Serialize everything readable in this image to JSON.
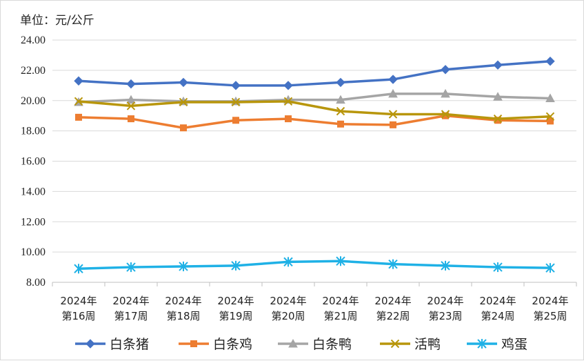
{
  "chart_data": {
    "type": "line",
    "unit_label": "单位：元/公斤",
    "categories": [
      [
        "2024年",
        "第16周"
      ],
      [
        "2024年",
        "第17周"
      ],
      [
        "2024年",
        "第18周"
      ],
      [
        "2024年",
        "第19周"
      ],
      [
        "2024年",
        "第20周"
      ],
      [
        "2024年",
        "第21周"
      ],
      [
        "2024年",
        "第22周"
      ],
      [
        "2024年",
        "第23周"
      ],
      [
        "2024年",
        "第24周"
      ],
      [
        "2024年",
        "第25周"
      ]
    ],
    "ylim": [
      8,
      24
    ],
    "yticks": [
      "8.00",
      "10.00",
      "12.00",
      "14.00",
      "16.00",
      "18.00",
      "20.00",
      "22.00",
      "24.00"
    ],
    "grid": true,
    "legend_position": "bottom",
    "series": [
      {
        "name": "白条猪",
        "color": "#4472C4",
        "marker": "diamond",
        "values": [
          21.3,
          21.1,
          21.2,
          21.0,
          21.0,
          21.2,
          21.4,
          22.05,
          22.35,
          22.6
        ]
      },
      {
        "name": "白条鸡",
        "color": "#ED7D31",
        "marker": "square",
        "values": [
          18.9,
          18.8,
          18.2,
          18.7,
          18.8,
          18.45,
          18.4,
          19.0,
          18.7,
          18.65
        ]
      },
      {
        "name": "白条鸭",
        "color": "#A5A5A5",
        "marker": "triangle",
        "values": [
          19.9,
          20.05,
          19.95,
          19.95,
          20.05,
          20.05,
          20.45,
          20.45,
          20.25,
          20.15
        ]
      },
      {
        "name": "活鸭",
        "color": "#B8960C",
        "marker": "x",
        "values": [
          19.95,
          19.65,
          19.9,
          19.9,
          19.95,
          19.3,
          19.1,
          19.1,
          18.8,
          18.95
        ]
      },
      {
        "name": "鸡蛋",
        "color": "#1FB1E6",
        "marker": "asterisk",
        "values": [
          8.9,
          9.0,
          9.05,
          9.1,
          9.35,
          9.4,
          9.2,
          9.1,
          9.0,
          8.95
        ]
      }
    ]
  }
}
